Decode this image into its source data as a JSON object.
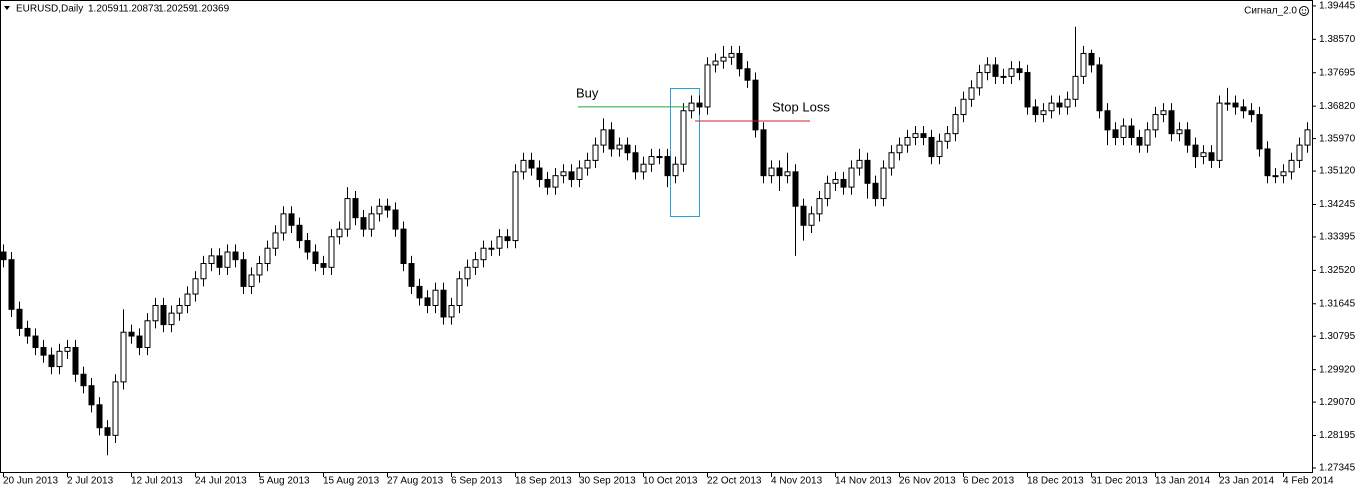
{
  "chart_data": {
    "type": "candlestick",
    "symbol": "EURUSD,Daily",
    "quote": [
      "1.20591",
      "1.20873",
      "1.20259",
      "1.20369"
    ],
    "indicator": "Сигнал_2.0",
    "bull_color": "#ffffff",
    "bear_color": "#000000",
    "ylim": [
      1.2724,
      1.396
    ],
    "yticks": [
      1.39445,
      {
        "value": 1.3857,
        "label": "1.38570"
      },
      1.37695,
      {
        "value": 1.3682,
        "label": "1.36820"
      },
      {
        "value": 1.3597,
        "label": "1.35970"
      },
      {
        "value": 1.3512,
        "label": "1.35120"
      },
      1.34245,
      1.33395,
      {
        "value": 1.3252,
        "label": "1.32520"
      },
      1.31645,
      1.30795,
      {
        "value": 1.2992,
        "label": "1.29920"
      },
      {
        "value": 1.2907,
        "label": "1.29070"
      },
      1.28195,
      1.27345
    ],
    "levels": [
      {
        "name": "Buy",
        "value": 1.368,
        "color": "#1fa83a"
      },
      {
        "name": "Stop Loss",
        "value": 1.3643,
        "color": "#d42020"
      }
    ],
    "categories": [
      "20 Jun 2013",
      null,
      null,
      null,
      null,
      null,
      null,
      null,
      "2 Jul 2013",
      null,
      null,
      null,
      null,
      null,
      null,
      null,
      "12 Jul 2013",
      null,
      null,
      null,
      null,
      null,
      null,
      null,
      "24 Jul 2013",
      null,
      null,
      null,
      null,
      null,
      null,
      null,
      "5 Aug 2013",
      null,
      null,
      null,
      null,
      null,
      null,
      null,
      "15 Aug 2013",
      null,
      null,
      null,
      null,
      null,
      null,
      null,
      "27 Aug 2013",
      null,
      null,
      null,
      null,
      null,
      null,
      null,
      "6 Sep 2013",
      null,
      null,
      null,
      null,
      null,
      null,
      null,
      "18 Sep 2013",
      null,
      null,
      null,
      null,
      null,
      null,
      null,
      "30 Sep 2013",
      null,
      null,
      null,
      null,
      null,
      null,
      null,
      "10 Oct 2013",
      null,
      null,
      null,
      null,
      null,
      null,
      null,
      "22 Oct 2013",
      null,
      null,
      null,
      null,
      null,
      null,
      null,
      "4 Nov 2013",
      null,
      null,
      null,
      null,
      null,
      null,
      null,
      "14 Nov 2013",
      null,
      null,
      null,
      null,
      null,
      null,
      null,
      "26 Nov 2013",
      null,
      null,
      null,
      null,
      null,
      null,
      null,
      "6 Dec 2013",
      null,
      null,
      null,
      null,
      null,
      null,
      null,
      "18 Dec 2013",
      null,
      null,
      null,
      null,
      null,
      null,
      null,
      "31 Dec 2013",
      null,
      null,
      null,
      null,
      null,
      null,
      null,
      "13 Jan 2014",
      null,
      null,
      null,
      null,
      null,
      null,
      null,
      "23 Jan 2014",
      null,
      null,
      null,
      null,
      null,
      null,
      null,
      "4 Feb 2014",
      null,
      null,
      null
    ],
    "open": [
      1.33,
      1.328,
      1.315,
      1.31,
      1.308,
      1.305,
      1.303,
      1.3,
      1.304,
      1.305,
      1.298,
      1.295,
      1.29,
      1.284,
      1.282,
      1.296,
      1.309,
      1.308,
      1.305,
      1.312,
      1.316,
      1.311,
      1.314,
      1.316,
      1.319,
      1.323,
      1.327,
      1.329,
      1.326,
      1.33,
      1.328,
      1.321,
      1.324,
      1.327,
      1.331,
      1.335,
      1.34,
      1.337,
      1.333,
      1.33,
      1.327,
      1.326,
      1.334,
      1.336,
      1.344,
      1.339,
      1.336,
      1.34,
      1.342,
      1.341,
      1.336,
      1.327,
      1.321,
      1.318,
      1.316,
      1.32,
      1.313,
      1.316,
      1.323,
      1.326,
      1.328,
      1.331,
      1.331,
      1.334,
      1.333,
      1.351,
      1.354,
      1.352,
      1.349,
      1.347,
      1.35,
      1.351,
      1.349,
      1.352,
      1.354,
      1.358,
      1.362,
      1.357,
      1.358,
      1.356,
      1.351,
      1.353,
      1.355,
      1.355,
      1.35,
      1.353,
      1.367,
      1.369,
      1.368,
      1.379,
      1.38,
      1.381,
      1.382,
      1.378,
      1.375,
      1.362,
      1.35,
      1.352,
      1.35,
      1.351,
      1.342,
      1.337,
      1.34,
      1.344,
      1.348,
      1.349,
      1.347,
      1.352,
      1.354,
      1.348,
      1.344,
      1.352,
      1.356,
      1.358,
      1.36,
      1.361,
      1.36,
      1.355,
      1.359,
      1.361,
      1.366,
      1.37,
      1.373,
      1.377,
      1.379,
      1.376,
      1.376,
      1.378,
      1.377,
      1.368,
      1.366,
      1.367,
      1.369,
      1.368,
      1.37,
      1.376,
      1.382,
      1.379,
      1.367,
      1.362,
      1.36,
      1.363,
      1.36,
      1.358,
      1.362,
      1.366,
      1.367,
      1.361,
      1.362,
      1.358,
      1.355,
      1.356,
      1.354,
      1.369,
      1.369,
      1.368,
      1.367,
      1.366,
      1.357,
      1.35,
      1.35,
      1.351,
      1.354,
      1.358
    ],
    "high": [
      1.332,
      1.33,
      1.317,
      1.312,
      1.31,
      1.307,
      1.305,
      1.306,
      1.307,
      1.307,
      1.3,
      1.297,
      1.292,
      1.286,
      1.298,
      1.315,
      1.311,
      1.31,
      1.314,
      1.318,
      1.318,
      1.316,
      1.318,
      1.321,
      1.325,
      1.329,
      1.331,
      1.331,
      1.332,
      1.332,
      1.33,
      1.326,
      1.329,
      1.333,
      1.337,
      1.342,
      1.342,
      1.339,
      1.335,
      1.332,
      1.329,
      1.336,
      1.338,
      1.347,
      1.346,
      1.341,
      1.342,
      1.344,
      1.344,
      1.343,
      1.338,
      1.329,
      1.323,
      1.32,
      1.322,
      1.322,
      1.318,
      1.325,
      1.328,
      1.33,
      1.333,
      1.333,
      1.336,
      1.336,
      1.353,
      1.356,
      1.356,
      1.354,
      1.351,
      1.352,
      1.353,
      1.353,
      1.354,
      1.356,
      1.36,
      1.365,
      1.364,
      1.36,
      1.36,
      1.358,
      1.355,
      1.357,
      1.357,
      1.357,
      1.355,
      1.369,
      1.371,
      1.371,
      1.381,
      1.382,
      1.384,
      1.384,
      1.384,
      1.38,
      1.377,
      1.364,
      1.354,
      1.354,
      1.356,
      1.353,
      1.344,
      1.342,
      1.346,
      1.35,
      1.351,
      1.351,
      1.354,
      1.357,
      1.356,
      1.35,
      1.354,
      1.358,
      1.36,
      1.362,
      1.363,
      1.363,
      1.362,
      1.361,
      1.363,
      1.368,
      1.372,
      1.375,
      1.379,
      1.381,
      1.381,
      1.378,
      1.38,
      1.38,
      1.379,
      1.37,
      1.369,
      1.371,
      1.371,
      1.372,
      1.389,
      1.384,
      1.383,
      1.381,
      1.369,
      1.364,
      1.365,
      1.365,
      1.362,
      1.364,
      1.368,
      1.369,
      1.369,
      1.364,
      1.364,
      1.36,
      1.358,
      1.358,
      1.371,
      1.373,
      1.371,
      1.37,
      1.369,
      1.368,
      1.359,
      1.352,
      1.353,
      1.356,
      1.36,
      1.364
    ],
    "low": [
      1.326,
      1.313,
      1.308,
      1.306,
      1.303,
      1.301,
      1.298,
      1.298,
      1.302,
      1.296,
      1.293,
      1.288,
      1.282,
      1.2768,
      1.28,
      1.294,
      1.306,
      1.303,
      1.303,
      1.31,
      1.309,
      1.309,
      1.312,
      1.314,
      1.317,
      1.321,
      1.325,
      1.324,
      1.324,
      1.326,
      1.319,
      1.319,
      1.322,
      1.325,
      1.329,
      1.333,
      1.335,
      1.331,
      1.328,
      1.325,
      1.324,
      1.324,
      1.332,
      1.334,
      1.337,
      1.334,
      1.334,
      1.338,
      1.339,
      1.334,
      1.325,
      1.319,
      1.316,
      1.314,
      1.314,
      1.311,
      1.311,
      1.314,
      1.321,
      1.324,
      1.326,
      1.329,
      1.329,
      1.331,
      1.331,
      1.349,
      1.35,
      1.347,
      1.345,
      1.345,
      1.348,
      1.347,
      1.347,
      1.35,
      1.352,
      1.356,
      1.355,
      1.355,
      1.354,
      1.349,
      1.349,
      1.351,
      1.353,
      1.347,
      1.348,
      1.351,
      1.365,
      1.366,
      1.366,
      1.377,
      1.378,
      1.379,
      1.376,
      1.373,
      1.36,
      1.348,
      1.348,
      1.346,
      1.348,
      1.329,
      1.333,
      1.335,
      1.338,
      1.342,
      1.346,
      1.345,
      1.345,
      1.35,
      1.344,
      1.342,
      1.342,
      1.35,
      1.354,
      1.356,
      1.358,
      1.358,
      1.353,
      1.353,
      1.357,
      1.359,
      1.364,
      1.368,
      1.371,
      1.375,
      1.374,
      1.374,
      1.374,
      1.375,
      1.366,
      1.364,
      1.364,
      1.365,
      1.366,
      1.366,
      1.368,
      1.374,
      1.377,
      1.365,
      1.358,
      1.358,
      1.358,
      1.358,
      1.356,
      1.356,
      1.36,
      1.364,
      1.359,
      1.359,
      1.356,
      1.352,
      1.353,
      1.352,
      1.352,
      1.367,
      1.366,
      1.365,
      1.364,
      1.355,
      1.348,
      1.348,
      1.348,
      1.349,
      1.352,
      1.356
    ],
    "close": [
      1.328,
      1.315,
      1.31,
      1.308,
      1.305,
      1.303,
      1.3,
      1.304,
      1.305,
      1.298,
      1.295,
      1.29,
      1.284,
      1.282,
      1.296,
      1.309,
      1.308,
      1.305,
      1.312,
      1.316,
      1.311,
      1.314,
      1.316,
      1.319,
      1.323,
      1.327,
      1.329,
      1.326,
      1.33,
      1.328,
      1.321,
      1.324,
      1.327,
      1.331,
      1.335,
      1.34,
      1.337,
      1.333,
      1.33,
      1.327,
      1.326,
      1.334,
      1.336,
      1.344,
      1.339,
      1.336,
      1.34,
      1.342,
      1.341,
      1.336,
      1.327,
      1.321,
      1.318,
      1.316,
      1.32,
      1.313,
      1.316,
      1.323,
      1.326,
      1.328,
      1.331,
      1.331,
      1.334,
      1.333,
      1.351,
      1.354,
      1.352,
      1.349,
      1.347,
      1.35,
      1.351,
      1.349,
      1.352,
      1.354,
      1.358,
      1.362,
      1.357,
      1.358,
      1.356,
      1.351,
      1.353,
      1.355,
      1.355,
      1.35,
      1.353,
      1.367,
      1.369,
      1.368,
      1.379,
      1.38,
      1.381,
      1.382,
      1.378,
      1.375,
      1.362,
      1.35,
      1.352,
      1.35,
      1.351,
      1.342,
      1.337,
      1.34,
      1.344,
      1.348,
      1.349,
      1.347,
      1.352,
      1.354,
      1.348,
      1.344,
      1.352,
      1.356,
      1.358,
      1.36,
      1.361,
      1.36,
      1.355,
      1.359,
      1.361,
      1.366,
      1.37,
      1.373,
      1.377,
      1.379,
      1.376,
      1.376,
      1.378,
      1.377,
      1.368,
      1.366,
      1.367,
      1.369,
      1.368,
      1.37,
      1.376,
      1.382,
      1.379,
      1.367,
      1.362,
      1.36,
      1.363,
      1.36,
      1.358,
      1.362,
      1.366,
      1.367,
      1.361,
      1.362,
      1.358,
      1.355,
      1.356,
      1.354,
      1.369,
      1.369,
      1.368,
      1.367,
      1.366,
      1.357,
      1.35,
      1.35,
      1.351,
      1.354,
      1.358,
      1.362
    ]
  }
}
